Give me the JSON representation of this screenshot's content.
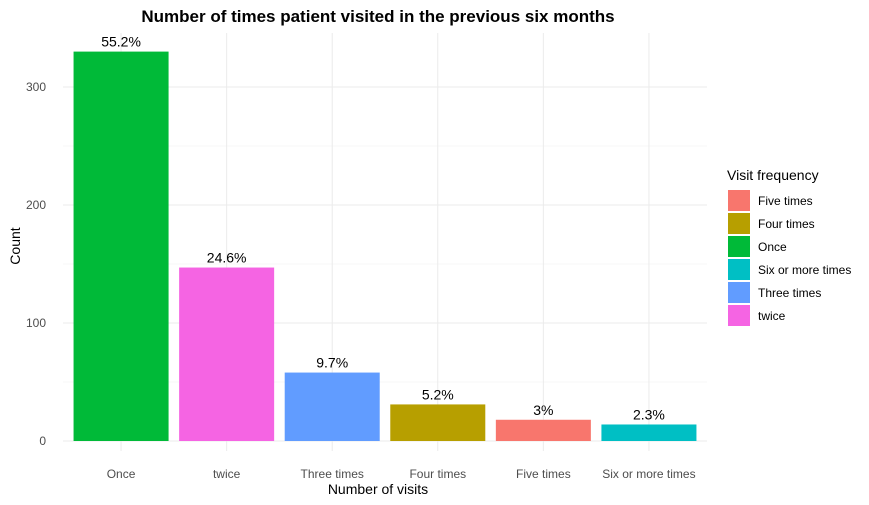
{
  "chart_data": {
    "type": "bar",
    "title": "Number of times patient visited in the previous six months",
    "xlabel": "Number of visits",
    "ylabel": "Count",
    "ylim": [
      0,
      330
    ],
    "yticks": [
      0,
      100,
      200,
      300
    ],
    "categories": [
      "Once",
      "twice",
      "Three times",
      "Four times",
      "Five times",
      "Six or more times"
    ],
    "values": [
      330,
      147,
      58,
      31,
      18,
      14
    ],
    "labels": [
      "55.2%",
      "24.6%",
      "9.7%",
      "5.2%",
      "3%",
      "2.3%"
    ],
    "colors": [
      "#00ba38",
      "#f564e3",
      "#619cff",
      "#b79f00",
      "#f8766d",
      "#00bfc4"
    ],
    "grid": true,
    "legend": {
      "title": "Visit frequency",
      "position": "right",
      "items": [
        {
          "label": "Five times",
          "color": "#f8766d"
        },
        {
          "label": "Four times",
          "color": "#b79f00"
        },
        {
          "label": "Once",
          "color": "#00ba38"
        },
        {
          "label": "Six or more times",
          "color": "#00bfc4"
        },
        {
          "label": "Three times",
          "color": "#619cff"
        },
        {
          "label": "twice",
          "color": "#f564e3"
        }
      ]
    }
  }
}
